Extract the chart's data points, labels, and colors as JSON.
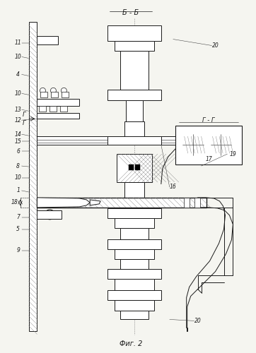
{
  "title": "Б - Б",
  "subtitle": "Фиг. 2",
  "section_label": "Г - Г",
  "bg_color": "#f5f5f0",
  "line_color": "#1a1a1a",
  "lw_main": 0.7,
  "lw_thin": 0.4,
  "lw_thick": 1.0
}
